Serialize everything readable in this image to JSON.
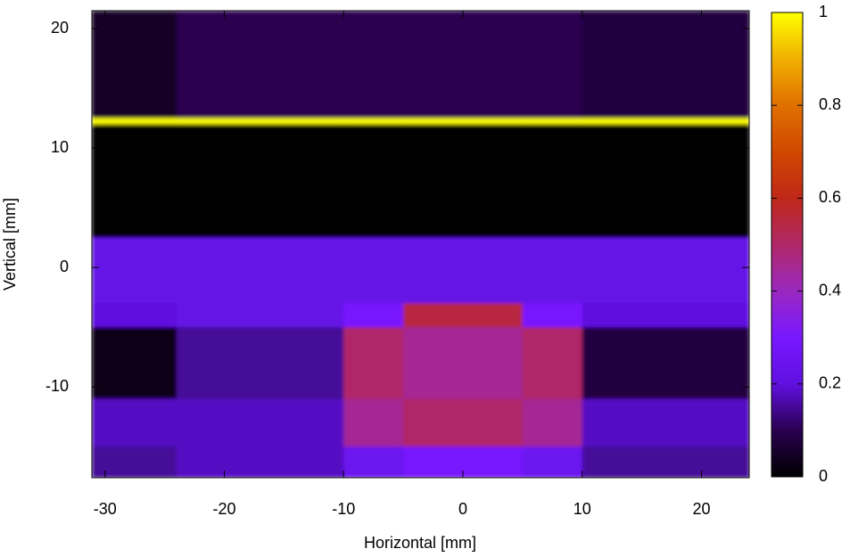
{
  "chart_data": {
    "type": "heatmap",
    "xlabel": "Horizontal [mm]",
    "ylabel": "Vertical [mm]",
    "x_edges": [
      -31.1,
      -24,
      -10,
      -5,
      5,
      10,
      24
    ],
    "y_edges": [
      21.5,
      12.5,
      12,
      2.5,
      -3,
      -5,
      -11,
      -15,
      -17.6
    ],
    "z": [
      [
        0.05,
        0.1,
        0.1,
        0.1,
        0.1,
        0.08
      ],
      [
        1,
        1,
        1,
        1,
        1,
        1
      ],
      [
        0,
        0,
        0,
        0,
        0,
        0
      ],
      [
        0.22,
        0.22,
        0.22,
        0.22,
        0.22,
        0.22
      ],
      [
        0.2,
        0.22,
        0.3,
        0.55,
        0.3,
        0.2
      ],
      [
        0.03,
        0.15,
        0.5,
        0.45,
        0.5,
        0.08
      ],
      [
        0.18,
        0.18,
        0.45,
        0.5,
        0.45,
        0.18
      ],
      [
        0.15,
        0.18,
        0.25,
        0.3,
        0.25,
        0.15
      ]
    ],
    "xlim": [
      -31.1,
      24
    ],
    "ylim": [
      -17.6,
      21.5
    ],
    "xticks": [
      -30,
      -20,
      -10,
      0,
      10,
      20
    ],
    "yticks": [
      -10,
      0,
      10,
      20
    ],
    "zlim": [
      0,
      1
    ],
    "zticks": [
      0,
      0.2,
      0.4,
      0.6,
      0.8,
      1
    ],
    "colormap": [
      "#000000",
      "#2a0050",
      "#6010e0",
      "#7818ff",
      "#9a28c0",
      "#b02868",
      "#c02818",
      "#d04800",
      "#e07000",
      "#f0b000",
      "#ffff00"
    ]
  }
}
